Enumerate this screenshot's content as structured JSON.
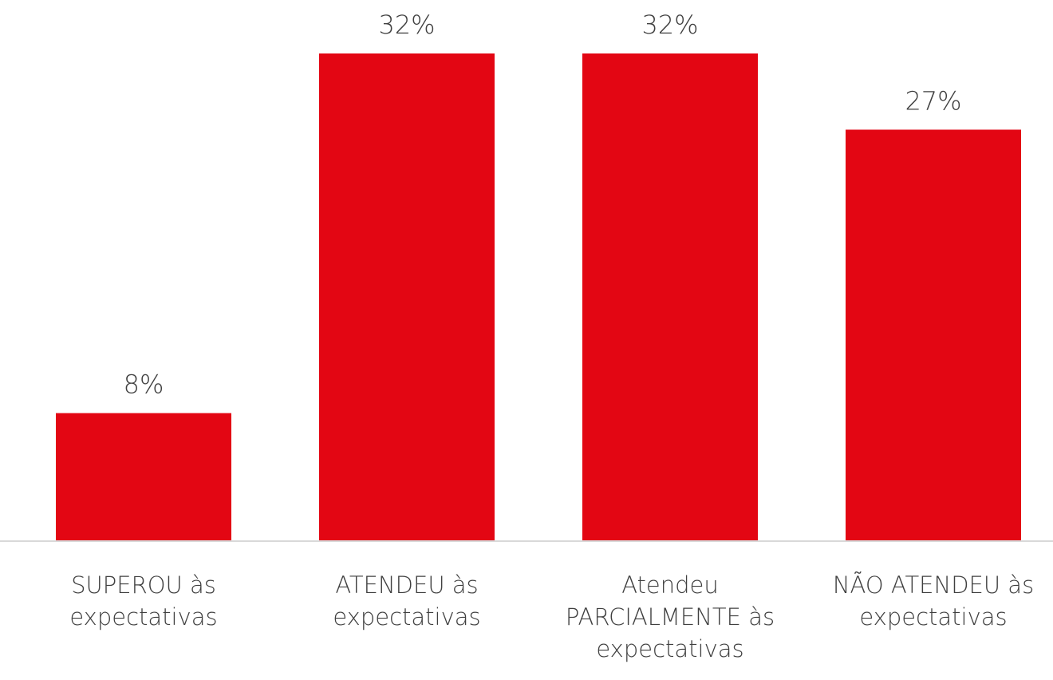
{
  "chart_data": {
    "type": "bar",
    "categories": [
      "SUPEROU às expectativas",
      "ATENDEU às expectativas",
      "Atendeu PARCIALMENTE às expectativas",
      "NÃO ATENDEU às expectativas"
    ],
    "values": [
      8.4,
      32,
      32,
      27
    ],
    "value_labels": [
      "8%",
      "32%",
      "32%",
      "27%"
    ],
    "color": "#e30613"
  }
}
